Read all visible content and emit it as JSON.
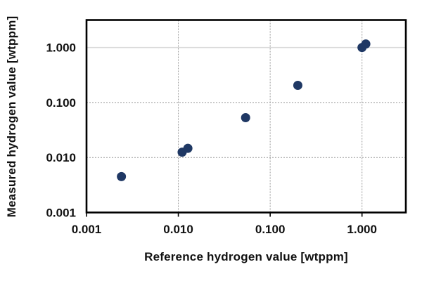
{
  "chart_data": {
    "type": "scatter",
    "title": "",
    "xlabel": "Reference hydrogen value [wtppm]",
    "ylabel": "Measured hydrogen value [wtppm]",
    "x_scale": "log",
    "y_scale": "log",
    "xlim": [
      0.001,
      3.0
    ],
    "ylim": [
      0.001,
      3.162
    ],
    "grid": "on",
    "legend": "none",
    "x_ticks": [
      {
        "label": "0.001",
        "value": 0.001,
        "grid": "none"
      },
      {
        "label": "0.010",
        "value": 0.01,
        "grid": "dashed"
      },
      {
        "label": "0.100",
        "value": 0.1,
        "grid": "dashed"
      },
      {
        "label": "1.000",
        "value": 1.0,
        "grid": "dashed"
      }
    ],
    "y_ticks": [
      {
        "label": "0.001",
        "value": 0.001,
        "grid": "none"
      },
      {
        "label": "0.010",
        "value": 0.01,
        "grid": "dashed"
      },
      {
        "label": "0.100",
        "value": 0.1,
        "grid": "dashed"
      },
      {
        "label": "1.000",
        "value": 1.0,
        "grid": "light-solid"
      }
    ],
    "points": [
      {
        "x": 0.0024,
        "y": 0.0045
      },
      {
        "x": 0.011,
        "y": 0.0125
      },
      {
        "x": 0.0127,
        "y": 0.0147
      },
      {
        "x": 0.054,
        "y": 0.053
      },
      {
        "x": 0.2,
        "y": 0.205
      },
      {
        "x": 1.0,
        "y": 1.0
      },
      {
        "x": 1.1,
        "y": 1.16
      }
    ],
    "marker": {
      "shape": "circle",
      "radius": 6.5
    },
    "colors": {
      "marker": "#1F3864",
      "grid_dashed": "#999999",
      "grid_light": "#D9D9D9",
      "axis_border": "#000000",
      "text": "#111111",
      "background": "#FFFFFF"
    }
  }
}
